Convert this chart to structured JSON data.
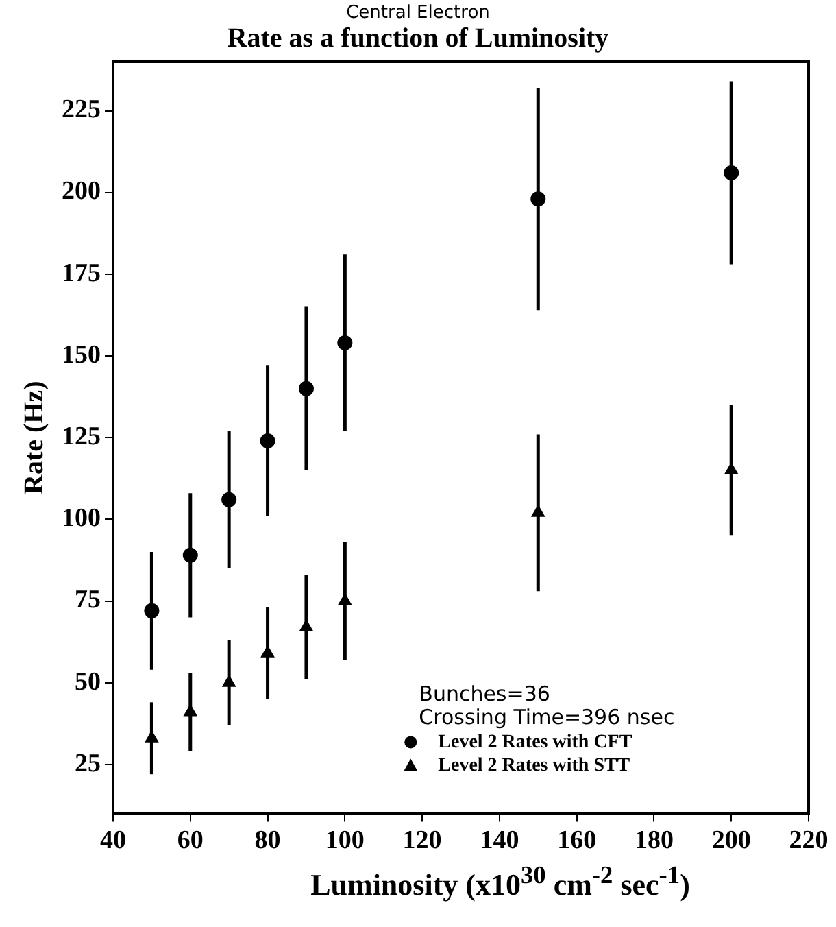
{
  "chart_data": {
    "type": "scatter",
    "subtitle": "Central Electron",
    "title": "Rate as a function of Luminosity",
    "xlabel": "Luminosity (x10$^{30}$ cm$^{-2}$ sec$^{-1}$)",
    "ylabel": "Rate (Hz)",
    "x": [
      50,
      60,
      70,
      80,
      90,
      100,
      150,
      200
    ],
    "series": [
      {
        "name": "Level 2 Rates with CFT",
        "color": "#000000",
        "marker": "circle",
        "values": [
          72,
          89,
          106,
          124,
          140,
          154,
          198,
          206
        ],
        "errors": [
          18,
          19,
          21,
          23,
          25,
          27,
          34,
          28
        ]
      },
      {
        "name": "Level 2 Rates with STT",
        "color": "#000000",
        "marker": "triangle",
        "values": [
          33,
          41,
          50,
          59,
          67,
          75,
          102,
          115
        ],
        "errors": [
          11,
          12,
          13,
          14,
          16,
          18,
          24,
          20
        ]
      }
    ],
    "annotations": [
      "Bunches=36",
      "Crossing Time=396 nsec"
    ],
    "xlim": [
      40,
      220
    ],
    "xticks": [
      40,
      60,
      80,
      100,
      120,
      140,
      160,
      180,
      200,
      220
    ],
    "ylim": [
      10,
      240
    ],
    "yticks": [
      25,
      50,
      75,
      100,
      125,
      150,
      175,
      200,
      225
    ],
    "grid": false,
    "legend": "bottom right"
  }
}
